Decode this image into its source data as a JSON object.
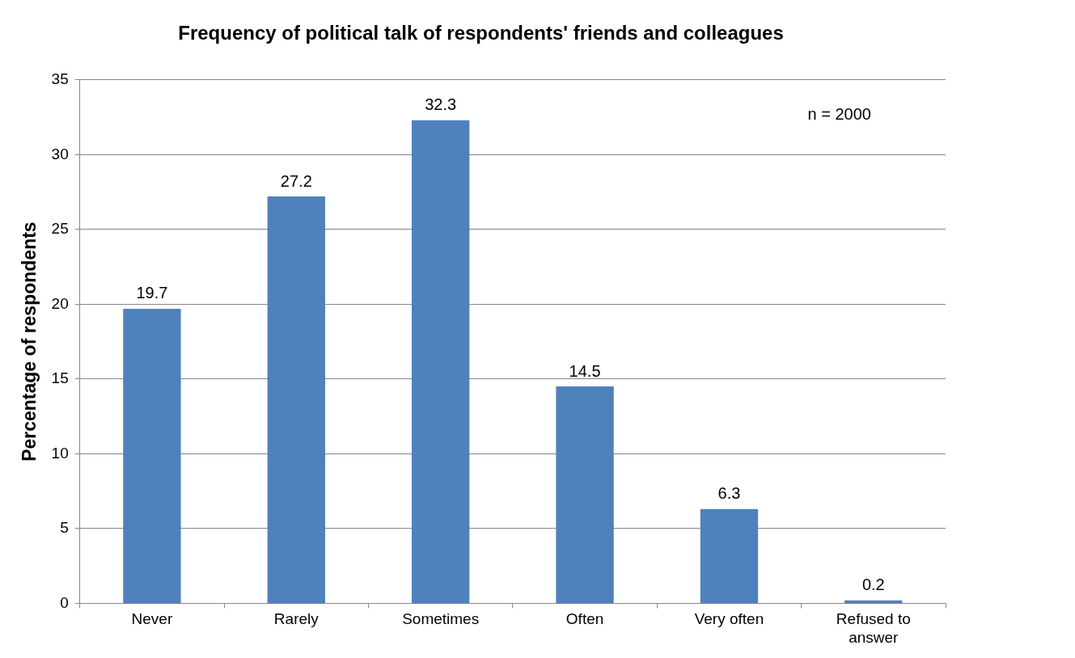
{
  "chart_data": {
    "type": "bar",
    "title": "Frequency of political talk of respondents' friends and colleagues",
    "ylabel": "Percentage of respondents",
    "categories": [
      "Never",
      "Rarely",
      "Sometimes",
      "Often",
      "Very often",
      "Refused to answer"
    ],
    "values": [
      19.7,
      27.2,
      32.3,
      14.5,
      6.3,
      0.2
    ],
    "color": "#4f81bd",
    "ylim": [
      0,
      35
    ],
    "yticks": [
      0,
      5,
      10,
      15,
      20,
      25,
      30,
      35
    ],
    "grid": "y",
    "data_labels": true,
    "legend": false,
    "annotations": [
      "n = 2000"
    ]
  }
}
